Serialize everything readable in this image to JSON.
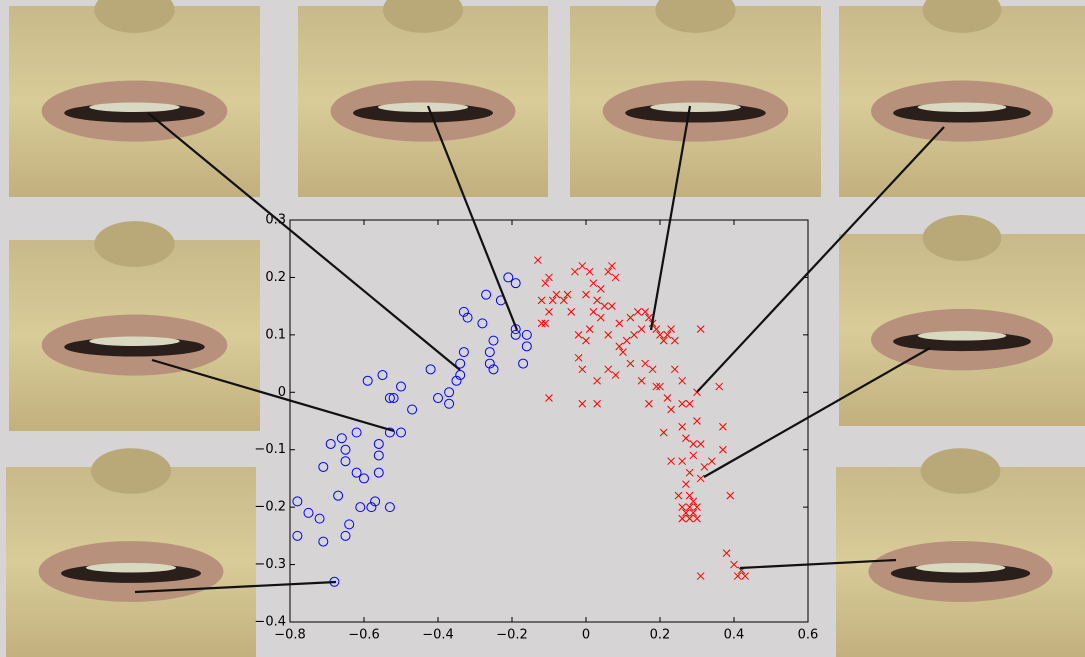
{
  "chart_data": {
    "type": "scatter",
    "xlim": [
      -0.8,
      0.6
    ],
    "ylim": [
      -0.4,
      0.3
    ],
    "xticks": [
      {
        "value": -0.8,
        "label": "−0.8"
      },
      {
        "value": -0.6,
        "label": "−0.6"
      },
      {
        "value": -0.4,
        "label": "−0.4"
      },
      {
        "value": -0.2,
        "label": "−0.2"
      },
      0,
      0.2,
      0.4,
      0.6
    ],
    "yticks": [
      {
        "value": -0.4,
        "label": "−0.4"
      },
      {
        "value": -0.3,
        "label": "−0.3"
      },
      {
        "value": -0.2,
        "label": "−0.2"
      },
      {
        "value": -0.1,
        "label": "−0.1"
      },
      0,
      0.1,
      0.2,
      0.3
    ],
    "series": [
      {
        "color": "#0000ff",
        "marker": "circle",
        "x": [
          -0.21,
          -0.19,
          -0.23,
          -0.27,
          -0.33,
          -0.32,
          -0.28,
          -0.19,
          -0.16,
          -0.19,
          -0.16,
          -0.25,
          -0.33,
          -0.34,
          -0.26,
          -0.26,
          -0.25,
          -0.17,
          -0.42,
          -0.34,
          -0.55,
          -0.59,
          -0.5,
          -0.53,
          -0.52,
          -0.4,
          -0.37,
          -0.35,
          -0.47,
          -0.37,
          -0.53,
          -0.5,
          -0.56,
          -0.56,
          -0.62,
          -0.66,
          -0.65,
          -0.69,
          -0.56,
          -0.65,
          -0.71,
          -0.6,
          -0.62,
          -0.67,
          -0.57,
          -0.53,
          -0.58,
          -0.75,
          -0.78,
          -0.72,
          -0.61,
          -0.64,
          -0.78,
          -0.65,
          -0.71,
          -0.68
        ],
        "y": [
          0.2,
          0.19,
          0.16,
          0.17,
          0.14,
          0.13,
          0.12,
          0.11,
          0.1,
          0.1,
          0.08,
          0.09,
          0.07,
          0.05,
          0.07,
          0.05,
          0.04,
          0.05,
          0.04,
          0.03,
          0.03,
          0.02,
          0.01,
          -0.01,
          -0.01,
          -0.01,
          0,
          0.02,
          -0.03,
          -0.02,
          -0.07,
          -0.07,
          -0.09,
          -0.11,
          -0.07,
          -0.08,
          -0.1,
          -0.09,
          -0.14,
          -0.12,
          -0.13,
          -0.15,
          -0.14,
          -0.18,
          -0.19,
          -0.2,
          -0.2,
          -0.21,
          -0.19,
          -0.22,
          -0.2,
          -0.23,
          -0.25,
          -0.25,
          -0.26,
          -0.33
        ]
      },
      {
        "color": "#ff0000",
        "marker": "cross",
        "x": [
          -0.13,
          -0.1,
          -0.11,
          -0.12,
          -0.09,
          -0.1,
          -0.08,
          -0.11,
          -0.12,
          -0.06,
          -0.04,
          -0.05,
          -0.03,
          -0.01,
          0.01,
          0.02,
          0.03,
          0,
          0.04,
          0.06,
          0.07,
          0.08,
          0.05,
          0.02,
          0.04,
          0.07,
          0.09,
          -0.02,
          0,
          0.01,
          0.06,
          0.09,
          0.11,
          0.12,
          0.14,
          0.16,
          0.17,
          0.18,
          0.19,
          0.2,
          0.21,
          0.22,
          0.23,
          0.24,
          0.15,
          0.13,
          0.1,
          -0.02,
          -0.01,
          0.06,
          0.08,
          0.03,
          0.12,
          0.16,
          0.18,
          0.15,
          0.19,
          0.2,
          0.22,
          0.24,
          0.26,
          0.17,
          0.23,
          0.26,
          0.28,
          0.3,
          0.36,
          0.31,
          -0.1,
          -0.01,
          0.03,
          0.21,
          0.26,
          0.3,
          0.27,
          0.29,
          0.31,
          0.37,
          0.37,
          0.23,
          0.26,
          0.29,
          0.32,
          0.34,
          0.28,
          0.31,
          0.27,
          0.28,
          0.29,
          0.25,
          0.26,
          0.27,
          0.28,
          0.29,
          0.3,
          0.26,
          0.28,
          0.39,
          0.3,
          0.38,
          0.31,
          0.42,
          0.41,
          0.43,
          0.4
        ],
        "y": [
          0.23,
          0.2,
          0.19,
          0.16,
          0.16,
          0.14,
          0.17,
          0.12,
          0.12,
          0.16,
          0.14,
          0.17,
          0.21,
          0.22,
          0.21,
          0.19,
          0.16,
          0.17,
          0.18,
          0.21,
          0.22,
          0.2,
          0.15,
          0.14,
          0.13,
          0.15,
          0.12,
          0.1,
          0.09,
          0.11,
          0.1,
          0.08,
          0.09,
          0.13,
          0.14,
          0.14,
          0.13,
          0.12,
          0.11,
          0.1,
          0.09,
          0.1,
          0.11,
          0.09,
          0.11,
          0.1,
          0.07,
          0.06,
          0.04,
          0.04,
          0.03,
          0.02,
          0.05,
          0.05,
          0.04,
          0.02,
          0.01,
          0.01,
          -0.01,
          0.04,
          0.02,
          -0.02,
          -0.03,
          -0.02,
          -0.02,
          0,
          0.01,
          0.11,
          -0.01,
          -0.02,
          -0.02,
          -0.07,
          -0.06,
          -0.05,
          -0.08,
          -0.09,
          -0.09,
          -0.06,
          -0.1,
          -0.12,
          -0.12,
          -0.11,
          -0.13,
          -0.12,
          -0.14,
          -0.15,
          -0.16,
          -0.18,
          -0.19,
          -0.18,
          -0.2,
          -0.21,
          -0.2,
          -0.21,
          -0.2,
          -0.22,
          -0.22,
          -0.18,
          -0.22,
          -0.28,
          -0.32,
          -0.31,
          -0.32,
          -0.32,
          -0.3
        ]
      }
    ]
  }
}
